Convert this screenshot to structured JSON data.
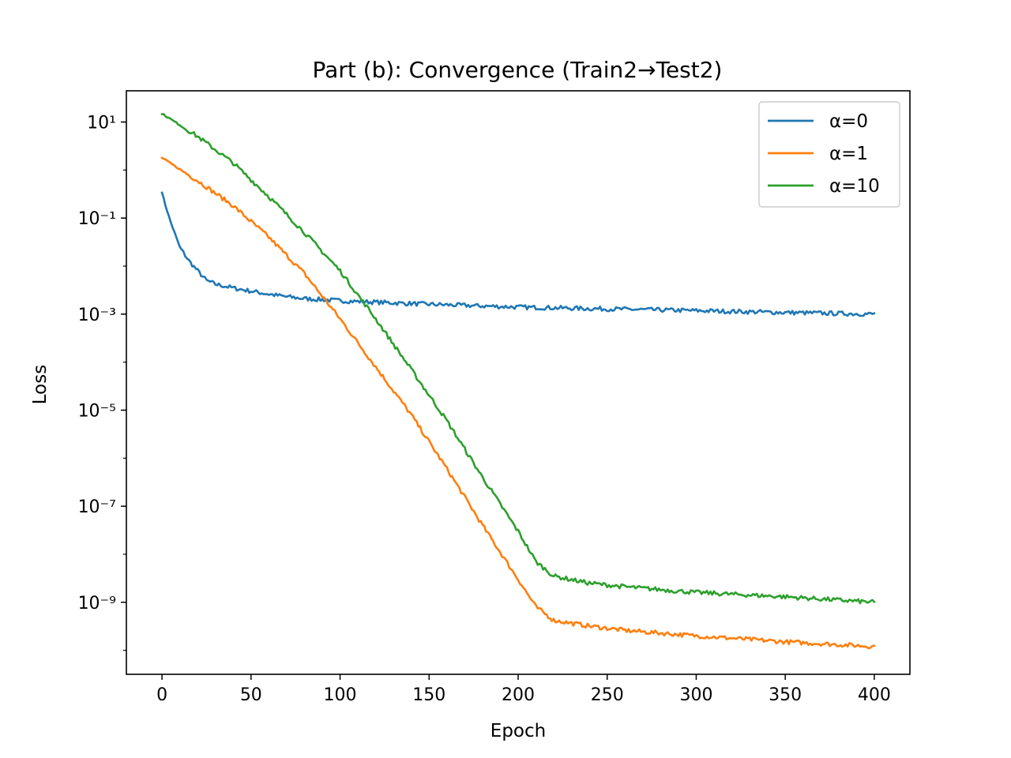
{
  "chart_data": {
    "type": "line",
    "title": "Part (b): Convergence (Train2→Test2)",
    "xlabel": "Epoch",
    "ylabel": "Loss",
    "xlim": [
      -20,
      420
    ],
    "ylim_log10": [
      -10.5,
      1.65
    ],
    "yscale": "log",
    "grid": false,
    "legend_position": "top-right",
    "x_ticks": [
      0,
      50,
      100,
      150,
      200,
      250,
      300,
      350,
      400
    ],
    "y_ticks": [
      {
        "exp": 1,
        "label": "10¹"
      },
      {
        "exp": -1,
        "label": "10⁻¹"
      },
      {
        "exp": -3,
        "label": "10⁻³"
      },
      {
        "exp": -5,
        "label": "10⁻⁵"
      },
      {
        "exp": -7,
        "label": "10⁻⁷"
      },
      {
        "exp": -9,
        "label": "10⁻⁹"
      }
    ],
    "series": [
      {
        "name": "α=0",
        "color": "#1f77b4",
        "points": [
          [
            0,
            0.35
          ],
          [
            2,
            0.18
          ],
          [
            5,
            0.08
          ],
          [
            8,
            0.04
          ],
          [
            10,
            0.025
          ],
          [
            15,
            0.013
          ],
          [
            20,
            0.008
          ],
          [
            25,
            0.005
          ],
          [
            30,
            0.0042
          ],
          [
            40,
            0.0035
          ],
          [
            50,
            0.003
          ],
          [
            60,
            0.0026
          ],
          [
            70,
            0.0023
          ],
          [
            80,
            0.0021
          ],
          [
            100,
            0.0019
          ],
          [
            150,
            0.0016
          ],
          [
            200,
            0.0014
          ],
          [
            250,
            0.00128
          ],
          [
            300,
            0.00118
          ],
          [
            350,
            0.00108
          ],
          [
            400,
            0.001
          ]
        ]
      },
      {
        "name": "α=1",
        "color": "#ff7f0e",
        "points": [
          [
            0,
            1.8
          ],
          [
            20,
            0.6
          ],
          [
            40,
            0.18
          ],
          [
            60,
            0.04
          ],
          [
            80,
            0.007
          ],
          [
            100,
            0.0008
          ],
          [
            120,
            8e-05
          ],
          [
            140,
            8e-06
          ],
          [
            160,
            6e-07
          ],
          [
            180,
            4e-08
          ],
          [
            200,
            3e-09
          ],
          [
            210,
            8e-10
          ],
          [
            220,
            4.2e-10
          ],
          [
            240,
            3.2e-10
          ],
          [
            260,
            2.6e-10
          ],
          [
            300,
            2e-10
          ],
          [
            350,
            1.5e-10
          ],
          [
            400,
            1.2e-10
          ]
        ]
      },
      {
        "name": "α=10",
        "color": "#2ca02c",
        "points": [
          [
            0,
            15
          ],
          [
            20,
            5
          ],
          [
            40,
            1.4
          ],
          [
            60,
            0.28
          ],
          [
            80,
            0.05
          ],
          [
            100,
            0.008
          ],
          [
            120,
            0.0008
          ],
          [
            140,
            7e-05
          ],
          [
            160,
            6e-06
          ],
          [
            180,
            4e-07
          ],
          [
            200,
            3e-08
          ],
          [
            210,
            7e-09
          ],
          [
            220,
            3.5e-09
          ],
          [
            240,
            2.5e-09
          ],
          [
            260,
            2.1e-09
          ],
          [
            300,
            1.6e-09
          ],
          [
            350,
            1.3e-09
          ],
          [
            400,
            1e-09
          ]
        ]
      }
    ]
  }
}
